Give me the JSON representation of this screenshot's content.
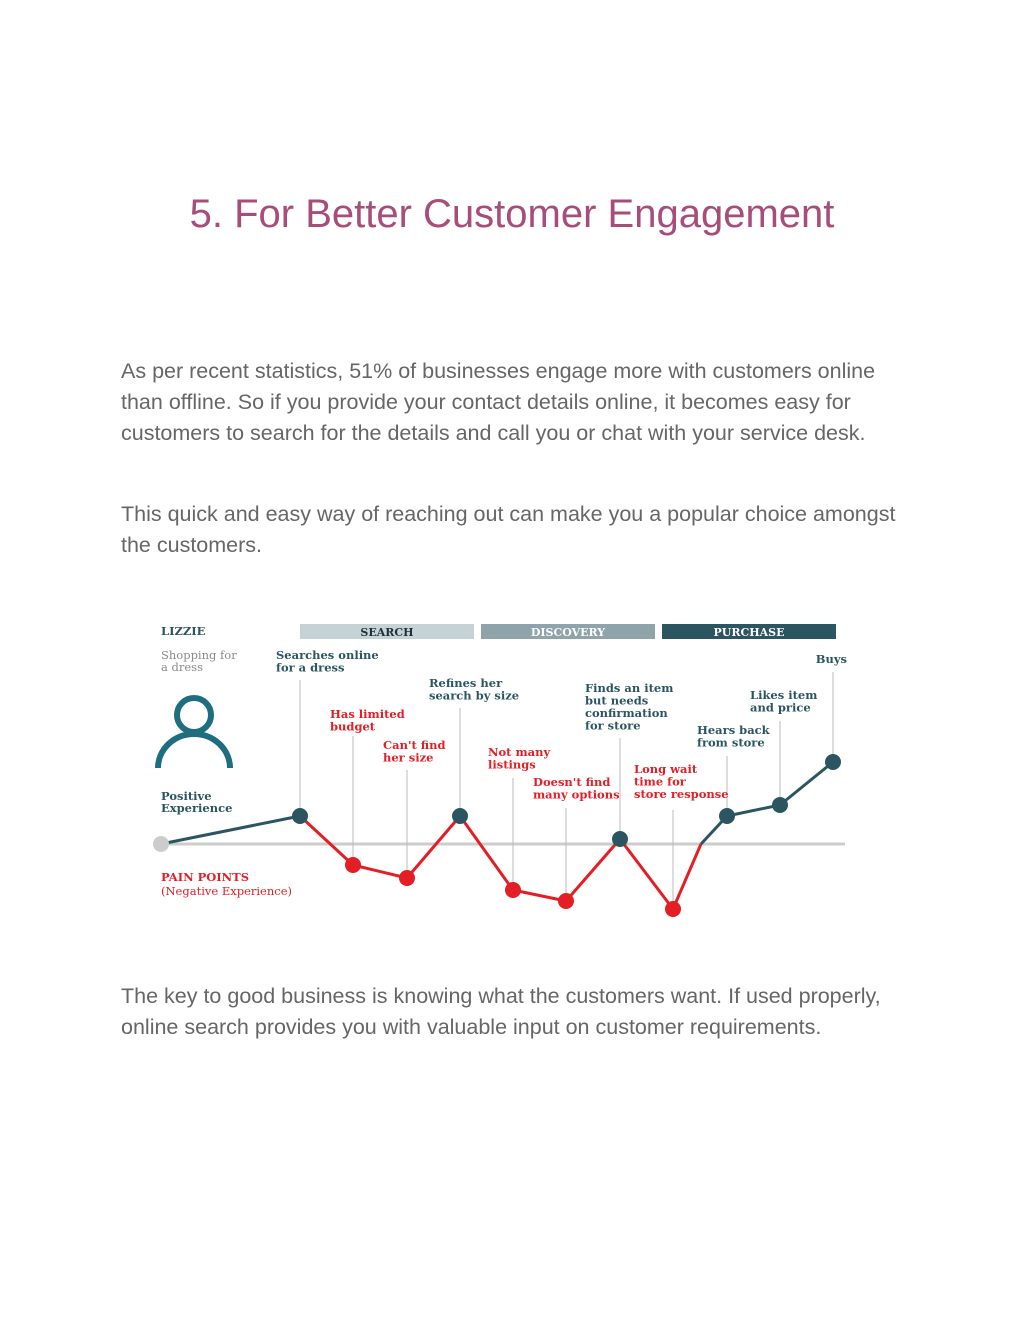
{
  "title": "5. For Better Customer Engagement",
  "paragraphs": [
    "As per recent statistics, 51% of businesses engage more with customers online than offline. So if you provide your contact details online, it becomes easy for customers to search for the details and call you or chat with your service desk.",
    "This quick and easy way of reaching out can make you a popular choice amongst the customers.",
    "The key to good business is knowing what the customers want. If used properly, online search provides you with valuable input on customer requirements."
  ],
  "journey": {
    "persona_name": "LIZZIE",
    "persona_line1": "Shopping for",
    "persona_line2": "a dress",
    "persona_icon": "person-icon",
    "positive_line1": "Positive",
    "positive_line2": "Experience",
    "pain_line1": "PAIN POINTS",
    "pain_line2": "(Negative Experience)",
    "phases": [
      {
        "label": "SEARCH",
        "color": "#c5d3d7",
        "text_color": "#1f2f36"
      },
      {
        "label": "DISCOVERY",
        "color": "#8fa3aa",
        "text_color": "#ffffff"
      },
      {
        "label": "PURCHASE",
        "color": "#2b5560",
        "text_color": "#ffffff"
      }
    ],
    "colors": {
      "positive": "#2b5560",
      "negative": "#e31e24",
      "baseline": "#cccccc",
      "neutral": "#cccccc"
    },
    "steps": [
      {
        "lines": [
          "Searches online",
          "for a dress"
        ],
        "type": "positive"
      },
      {
        "lines": [
          "Has limited",
          "budget"
        ],
        "type": "negative"
      },
      {
        "lines": [
          "Can't find",
          "her size"
        ],
        "type": "negative"
      },
      {
        "lines": [
          "Refines her",
          "search by size"
        ],
        "type": "positive"
      },
      {
        "lines": [
          "Not many",
          "listings"
        ],
        "type": "negative"
      },
      {
        "lines": [
          "Doesn't find",
          "many options"
        ],
        "type": "negative"
      },
      {
        "lines": [
          "Finds an item",
          "but needs",
          "confirmation",
          "for store"
        ],
        "type": "positive"
      },
      {
        "lines": [
          "Long wait",
          "time for",
          "store response"
        ],
        "type": "negative"
      },
      {
        "lines": [
          "Hears back",
          "from store"
        ],
        "type": "positive"
      },
      {
        "lines": [
          "Likes item",
          "and price"
        ],
        "type": "positive"
      },
      {
        "lines": [
          "Buys"
        ],
        "type": "positive"
      }
    ]
  }
}
